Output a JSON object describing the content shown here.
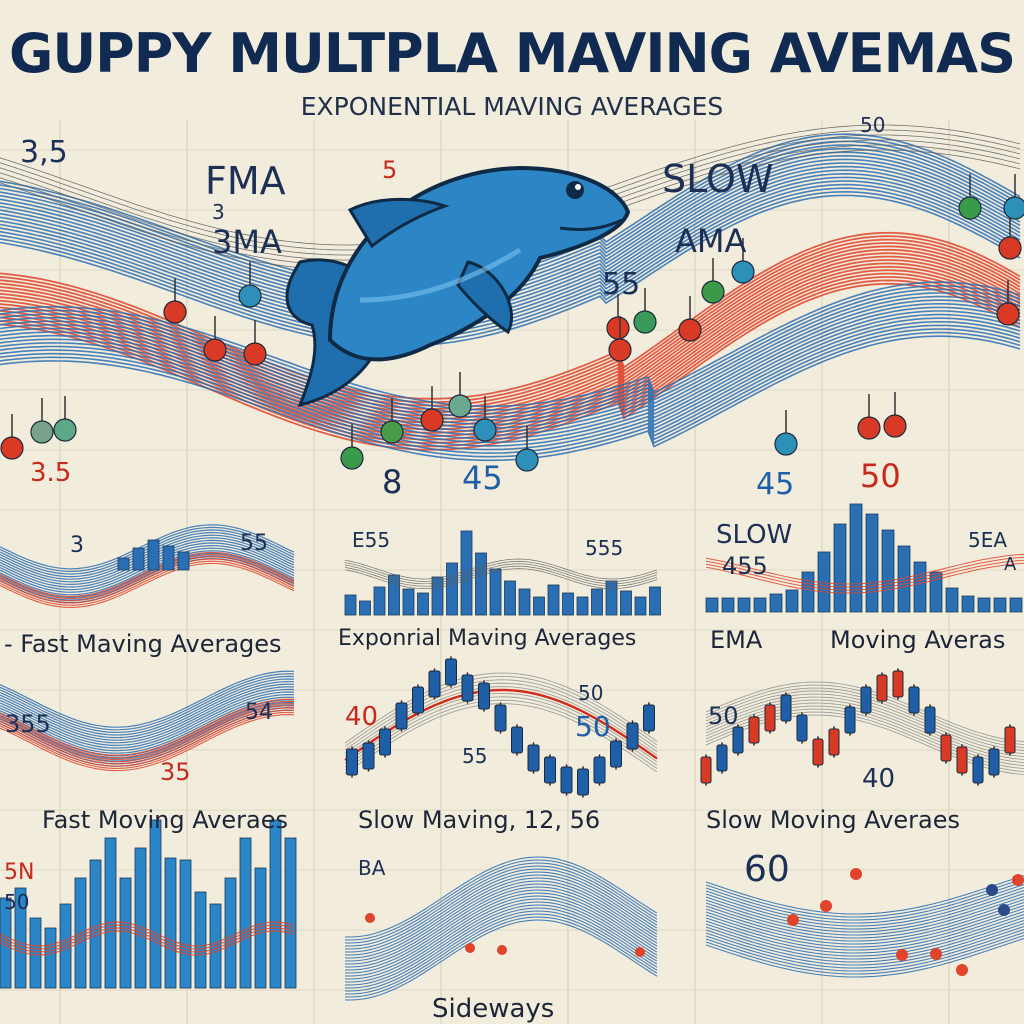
{
  "title": "GUPPY MULTPLA MAVING AVEMAS",
  "subtitle": "EXPONENTIAL MAVING AVERAGES",
  "colors": {
    "background": "#f1ecdc",
    "blue_band": "#2a6fb3",
    "red_band": "#e0442a",
    "navy_text": "#1c2f55",
    "fish": "#2c86c6"
  },
  "icons": [
    "fish-icon"
  ],
  "main_labels": {
    "top_left_number": "3,5",
    "fma": "FMA",
    "small_3": "3",
    "three_ma": "3MA",
    "five_red": "5",
    "slow": "SLOW",
    "ama": "AMA",
    "fiftyfive": "55",
    "top_right_number": "50",
    "bottom_left_number": "3.5",
    "eight": "8",
    "fortyfive_mid": "45",
    "fortyfive_right": "45",
    "fifty_red": "50"
  },
  "panels": {
    "row1": {
      "p1": {
        "label_a": "3",
        "label_b": "55",
        "caption": "- Fast Maving Averages"
      },
      "p2": {
        "label_a": "E55",
        "label_b": "555",
        "caption": "Exponrial Maving Averages"
      },
      "p3": {
        "label_a": "SLOW",
        "label_b": "455",
        "caption": "EMA"
      },
      "p4": {
        "label_a": "5EA",
        "label_b": "A",
        "caption": "Moving Averas"
      }
    },
    "row2": {
      "p1": {
        "label_a": "355",
        "label_b": "54",
        "label_c": "35",
        "caption": "Fast Moving Averaes"
      },
      "p2": {
        "label_a": "40",
        "label_b": "50",
        "label_c": "50",
        "label_d": "55",
        "caption": "Slow Maving, 12, 56"
      },
      "p3": {
        "label_a": "50",
        "label_b": "40",
        "caption": "Slow Moving Averaes"
      }
    },
    "row3": {
      "p1": {
        "label_a": "5N",
        "label_b": "50"
      },
      "p2": {
        "label_a": "BA",
        "caption": "Sideways"
      },
      "p3": {
        "label_a": "60"
      }
    }
  }
}
